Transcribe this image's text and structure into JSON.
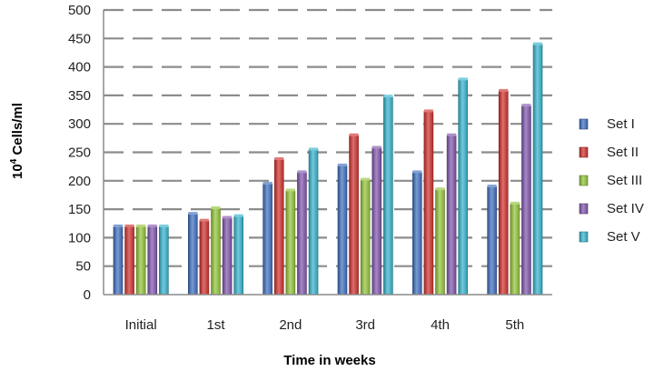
{
  "chart_data": {
    "type": "bar",
    "xlabel": "Time in weeks",
    "ylabel_base": "10",
    "ylabel_exp": "4",
    "ylabel_rest": " Cells/ml",
    "ylim": [
      0,
      500
    ],
    "ytick_step": 50,
    "grid": true,
    "legend_position": "right",
    "categories": [
      "Initial",
      "1st",
      "2nd",
      "3rd",
      "4th",
      "5th"
    ],
    "series": [
      {
        "name": "Set I",
        "color": "#3f6fbf",
        "values": [
          120,
          142,
          195,
          227,
          215,
          190
        ]
      },
      {
        "name": "Set II",
        "color": "#d0312d",
        "values": [
          120,
          130,
          238,
          280,
          322,
          358
        ]
      },
      {
        "name": "Set III",
        "color": "#93c43a",
        "values": [
          120,
          152,
          183,
          202,
          185,
          160
        ]
      },
      {
        "name": "Set IV",
        "color": "#8156ad",
        "values": [
          120,
          135,
          215,
          258,
          280,
          332
        ]
      },
      {
        "name": "Set V",
        "color": "#36b3cc",
        "values": [
          120,
          138,
          255,
          348,
          378,
          440
        ]
      }
    ]
  }
}
